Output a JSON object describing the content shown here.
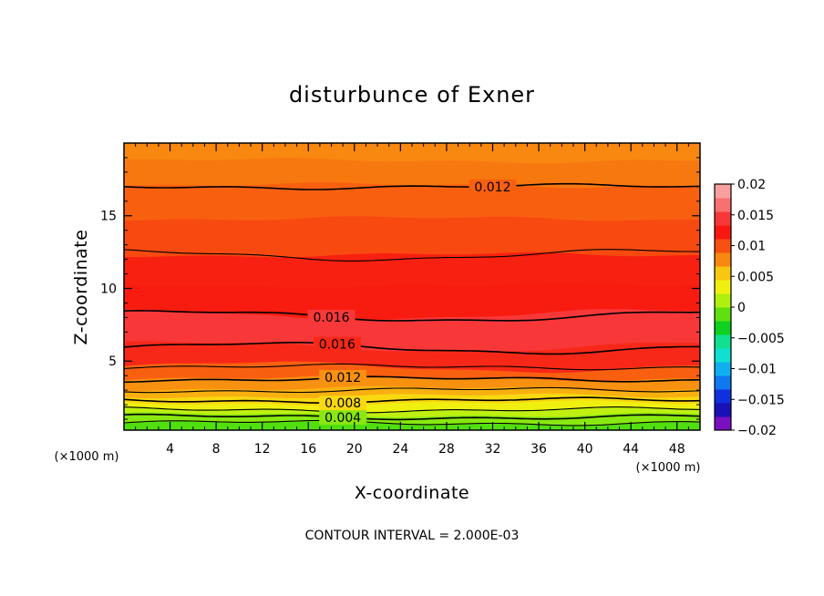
{
  "chart_data": {
    "type": "heatmap",
    "title": "disturbunce of Exner",
    "xlabel": "X-coordinate",
    "ylabel": "Z-coordinate",
    "x_unit_label": "(×1000 m)",
    "x_unit_label_right": "(×1000 m)",
    "xlim": [
      0,
      50
    ],
    "ylim": [
      0.25,
      20
    ],
    "x_ticks": [
      "4",
      "8",
      "12",
      "16",
      "20",
      "24",
      "28",
      "32",
      "36",
      "40",
      "44",
      "48"
    ],
    "y_ticks": [
      "5",
      "10",
      "15"
    ],
    "x_tick_values": [
      4,
      8,
      12,
      16,
      20,
      24,
      28,
      32,
      36,
      40,
      44,
      48
    ],
    "y_tick_values": [
      5,
      10,
      15
    ],
    "note": "CONTOUR INTERVAL = 2.000E-03",
    "colorbar": {
      "min": -0.02,
      "max": 0.02,
      "ticks": [
        "0.02",
        "0.015",
        "0.01",
        "0.005",
        "0",
        "−0.005",
        "−0.01",
        "−0.015",
        "−0.02"
      ],
      "tick_values": [
        0.02,
        0.015,
        0.01,
        0.005,
        0,
        -0.005,
        -0.01,
        -0.015,
        -0.02
      ],
      "colors": [
        "#7a10c0",
        "#1a10b8",
        "#1030e0",
        "#1078f0",
        "#10b0f0",
        "#10e0d0",
        "#10e090",
        "#10d020",
        "#60e010",
        "#b0f010",
        "#f0f010",
        "#f8c810",
        "#f88810",
        "#f85010",
        "#f81810",
        "#f83838",
        "#f87070",
        "#f8a0a0"
      ]
    },
    "bands": [
      {
        "z_top": 0.7,
        "value": 0.0015,
        "color": "#50e010"
      },
      {
        "z_top": 1.3,
        "value": 0.003,
        "color": "#88e810"
      },
      {
        "z_top": 1.7,
        "value": 0.0045,
        "color": "#c0f010"
      },
      {
        "z_top": 2.1,
        "value": 0.006,
        "color": "#f0f010"
      },
      {
        "z_top": 2.6,
        "value": 0.0075,
        "color": "#f8d810"
      },
      {
        "z_top": 3.1,
        "value": 0.009,
        "color": "#f8b010"
      },
      {
        "z_top": 3.8,
        "value": 0.0105,
        "color": "#f89010"
      },
      {
        "z_top": 4.6,
        "value": 0.0125,
        "color": "#f86010"
      },
      {
        "z_top": 6.0,
        "value": 0.015,
        "color": "#f82818"
      },
      {
        "z_top": 8.2,
        "value": 0.0165,
        "color": "#f83838"
      },
      {
        "z_top": 10.2,
        "value": 0.015,
        "color": "#f81c10"
      },
      {
        "z_top": 12.3,
        "value": 0.014,
        "color": "#f82010"
      },
      {
        "z_top": 14.8,
        "value": 0.0125,
        "color": "#f84a10"
      },
      {
        "z_top": 17.1,
        "value": 0.012,
        "color": "#f86010"
      },
      {
        "z_top": 18.8,
        "value": 0.011,
        "color": "#f87810"
      },
      {
        "z_top": 20.0,
        "value": 0.01,
        "color": "#f88810"
      }
    ],
    "contours": [
      {
        "level": 0.002,
        "z": 0.75,
        "label": ""
      },
      {
        "level": 0.004,
        "z": 1.15,
        "label": "0.004"
      },
      {
        "level": 0.006,
        "z": 1.65,
        "label": ""
      },
      {
        "level": 0.008,
        "z": 2.3,
        "label": "0.008"
      },
      {
        "level": 0.01,
        "z": 3.0,
        "label": ""
      },
      {
        "level": 0.012,
        "z": 3.75,
        "label": "0.012"
      },
      {
        "level": 0.014,
        "z": 4.6,
        "label": ""
      },
      {
        "level": 0.016,
        "z": 5.9,
        "label": "0.016"
      },
      {
        "level": 0.016,
        "z": 8.1,
        "label": "0.016"
      },
      {
        "level": 0.014,
        "z": 12.3,
        "label": ""
      },
      {
        "level": 0.012,
        "z": 17.0,
        "label": "0.012"
      }
    ]
  }
}
